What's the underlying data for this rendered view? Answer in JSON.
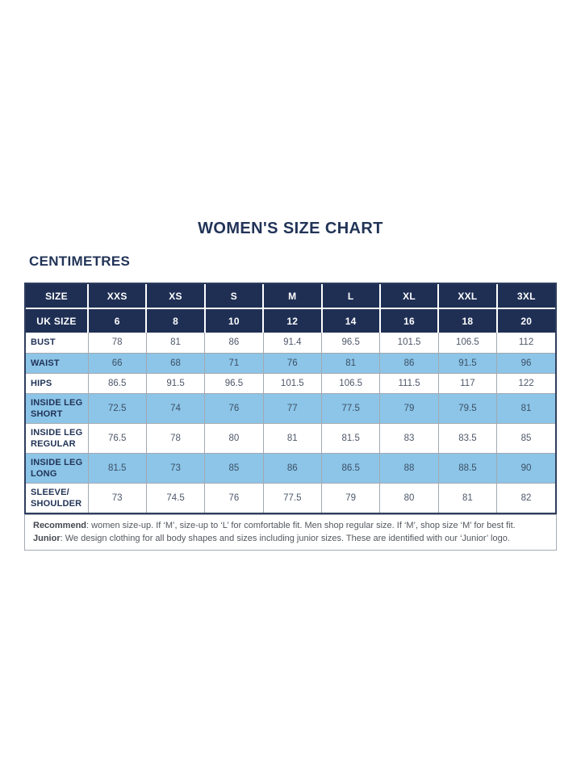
{
  "page": {
    "title": "WOMEN'S SIZE CHART",
    "unit_label": "CENTIMETRES"
  },
  "colors": {
    "header_navy": "#1f2f54",
    "shaded_row_blue": "#8cc5e8",
    "title_navy": "#223457",
    "body_text": "#4e586a",
    "note_text": "#53575e"
  },
  "chart_data": {
    "type": "table",
    "title": "WOMEN'S SIZE CHART",
    "unit": "CENTIMETRES",
    "columns": [
      "SIZE",
      "XXS",
      "XS",
      "S",
      "M",
      "L",
      "XL",
      "XXL",
      "3XL"
    ],
    "uk_sizes": [
      "UK SIZE",
      "6",
      "8",
      "10",
      "12",
      "14",
      "16",
      "18",
      "20"
    ],
    "rows": [
      {
        "label": "BUST",
        "values": [
          "78",
          "81",
          "86",
          "91.4",
          "96.5",
          "101.5",
          "106.5",
          "112"
        ]
      },
      {
        "label": "WAIST",
        "values": [
          "66",
          "68",
          "71",
          "76",
          "81",
          "86",
          "91.5",
          "96"
        ]
      },
      {
        "label": "HIPS",
        "values": [
          "86.5",
          "91.5",
          "96.5",
          "101.5",
          "106.5",
          "111.5",
          "117",
          "122"
        ]
      },
      {
        "label": "INSIDE LEG SHORT",
        "values": [
          "72.5",
          "74",
          "76",
          "77",
          "77.5",
          "79",
          "79.5",
          "81"
        ]
      },
      {
        "label": "INSIDE LEG REGULAR",
        "values": [
          "76.5",
          "78",
          "80",
          "81",
          "81.5",
          "83",
          "83.5",
          "85"
        ]
      },
      {
        "label": "INSIDE LEG LONG",
        "values": [
          "81.5",
          "73",
          "85",
          "86",
          "86.5",
          "88",
          "88.5",
          "90"
        ]
      },
      {
        "label": "SLEEVE/SHOULDER",
        "values": [
          "73",
          "74.5",
          "76",
          "77.5",
          "79",
          "80",
          "81",
          "82"
        ]
      }
    ],
    "notes": [
      {
        "lead": "Recommend",
        "text": ": women size-up. If ‘M’, size-up to ‘L’ for comfortable fit. Men shop regular size. If ‘M’, shop size ‘M’ for best fit."
      },
      {
        "lead": "Junior",
        "text": ": We design clothing for all body shapes and sizes including junior sizes. These are identified with our ‘Junior’ logo."
      }
    ]
  }
}
